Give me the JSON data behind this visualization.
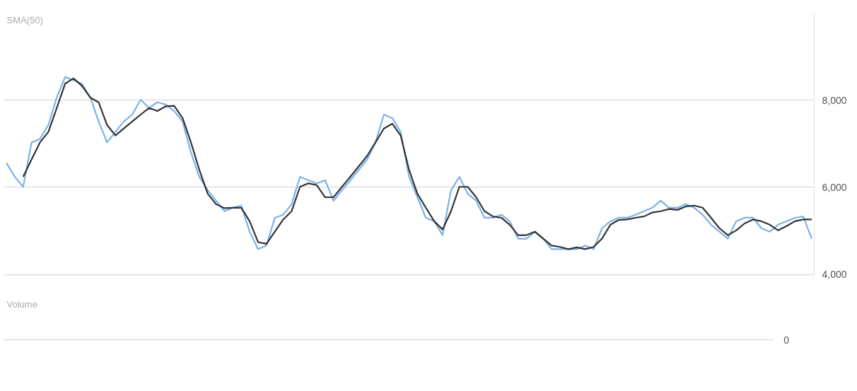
{
  "chart_data": [
    {
      "type": "line",
      "categories": [
        null,
        null,
        null,
        null,
        null,
        null,
        null,
        null,
        null,
        null,
        null,
        null,
        null,
        null,
        null,
        null,
        null,
        null,
        null,
        null,
        null,
        null,
        null,
        null,
        null,
        null,
        null,
        null,
        null,
        null,
        null,
        null,
        null,
        null,
        null,
        null,
        null,
        null,
        null,
        null,
        null,
        null,
        null,
        null,
        null,
        null,
        null,
        null,
        null,
        null,
        null,
        null,
        null,
        null,
        null,
        null,
        null,
        null,
        null,
        null,
        null,
        null,
        null,
        null,
        null,
        null,
        null,
        null,
        null,
        null,
        null,
        null,
        null,
        null,
        null,
        null,
        null,
        null,
        null,
        null,
        null,
        null,
        null,
        null,
        null,
        null,
        null,
        null,
        null,
        null,
        null,
        null,
        null,
        null,
        null,
        null,
        null
      ],
      "series": [
        {
          "color": "#7ab3e8",
          "values": [
            6560,
            6240,
            6010,
            7030,
            7110,
            7430,
            8060,
            8530,
            8460,
            8380,
            8060,
            7510,
            7030,
            7270,
            7510,
            7670,
            8010,
            7820,
            7950,
            7900,
            7750,
            7510,
            6800,
            6240,
            5930,
            5690,
            5450,
            5530,
            5580,
            4980,
            4580,
            4660,
            5300,
            5370,
            5610,
            6240,
            6160,
            6090,
            6160,
            5690,
            5930,
            6160,
            6400,
            6640,
            7030,
            7670,
            7590,
            7270,
            6240,
            5770,
            5300,
            5220,
            4900,
            5930,
            6240,
            5850,
            5690,
            5300,
            5300,
            5370,
            5220,
            4820,
            4820,
            4980,
            4820,
            4580,
            4580,
            4580,
            4580,
            4660,
            4580,
            5060,
            5220,
            5300,
            5300,
            5370,
            5450,
            5530,
            5690,
            5530,
            5530,
            5610,
            5530,
            5370,
            5140,
            4980,
            4820,
            5220,
            5300,
            5300,
            5060,
            4980,
            5140,
            5220,
            5300,
            5330,
            4820
          ]
        },
        {
          "name": "SMA(50)",
          "color": "#333333",
          "values": [
            null,
            null,
            6240,
            6640,
            7030,
            7270,
            7820,
            8380,
            8500,
            8330,
            8060,
            7950,
            7430,
            7190,
            7350,
            7510,
            7670,
            7820,
            7750,
            7860,
            7870,
            7590,
            7030,
            6400,
            5850,
            5610,
            5520,
            5530,
            5530,
            5220,
            4740,
            4700,
            4980,
            5260,
            5450,
            6010,
            6090,
            6050,
            5770,
            5770,
            6010,
            6240,
            6480,
            6720,
            7030,
            7350,
            7460,
            7190,
            6400,
            5850,
            5530,
            5220,
            5030,
            5450,
            6010,
            6010,
            5770,
            5450,
            5330,
            5300,
            5140,
            4900,
            4900,
            4980,
            4820,
            4660,
            4630,
            4580,
            4620,
            4580,
            4630,
            4820,
            5140,
            5250,
            5260,
            5300,
            5330,
            5420,
            5450,
            5500,
            5480,
            5560,
            5580,
            5530,
            5300,
            5060,
            4900,
            5010,
            5170,
            5260,
            5220,
            5140,
            5010,
            5110,
            5220,
            5260,
            5260
          ]
        }
      ],
      "ylim": [
        3960,
        10000
      ],
      "yticks": [
        {
          "value": 4000,
          "label": "4,000"
        },
        {
          "value": 6000,
          "label": "6,000"
        },
        {
          "value": 8000,
          "label": "8,000"
        }
      ],
      "grid": "y",
      "legend": "top left",
      "tick_labels": "y"
    },
    {
      "type": "other",
      "title": "Volume",
      "annotations": [
        "0"
      ]
    }
  ]
}
